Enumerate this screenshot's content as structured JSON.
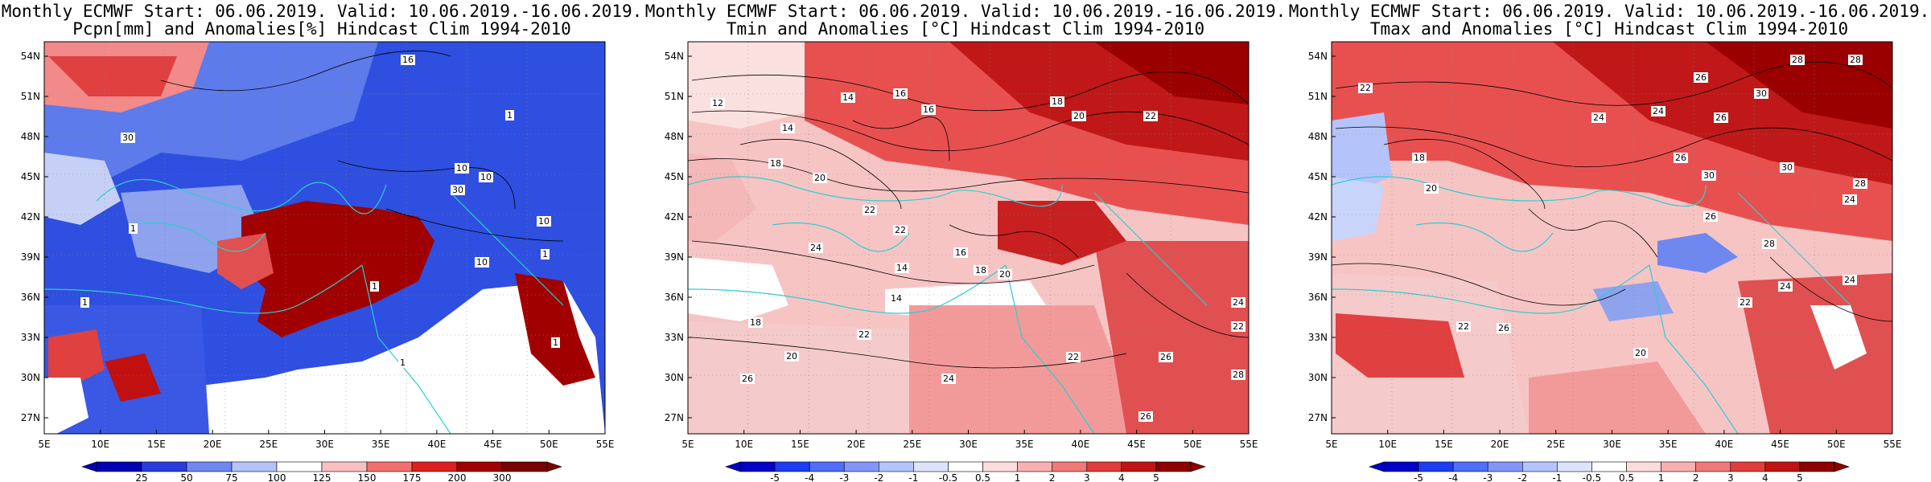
{
  "panels": [
    {
      "title_line1": "Monthly ECMWF Start: 06.06.2019. Valid: 10.06.2019.-16.06.2019.",
      "title_line2": "Pcpn[mm] and Anomalies[%] Hindcast Clim 1994-2010",
      "colorbar_labels": [
        "25",
        "50",
        "75",
        "100",
        "125",
        "150",
        "175",
        "200",
        "300"
      ],
      "colorbar_colors": [
        "#0000b4",
        "#2a3cdc",
        "#6e88f0",
        "#b4c4f8",
        "#ffffff",
        "#f8c0c0",
        "#f07070",
        "#dc2020",
        "#a00000",
        "#780000"
      ],
      "contour_labels": [
        "16",
        "1",
        "30",
        "10",
        "1",
        "10",
        "30",
        "10",
        "1",
        "1",
        "1",
        "1",
        "1",
        "10"
      ]
    },
    {
      "title_line1": "Monthly ECMWF Start: 06.06.2019. Valid: 10.06.2019.-16.06.2019.",
      "title_line2": "Tmin and Anomalies [°C] Hindcast Clim 1994-2010",
      "colorbar_labels": [
        "-5",
        "-4",
        "-3",
        "-2",
        "-1",
        "-0.5",
        "0.5",
        "1",
        "2",
        "3",
        "4",
        "5"
      ],
      "colorbar_colors": [
        "#0000c8",
        "#1e3cf0",
        "#506ef8",
        "#8296f8",
        "#b4c4fc",
        "#dce4fc",
        "#ffffff",
        "#fcdcdc",
        "#f8b0b0",
        "#f07878",
        "#e03c3c",
        "#c01414",
        "#8c0000"
      ],
      "contour_labels": [
        "16",
        "14",
        "16",
        "18",
        "20",
        "22",
        "12",
        "14",
        "18",
        "20",
        "22",
        "22",
        "24",
        "14",
        "16",
        "18",
        "20",
        "14",
        "22",
        "18",
        "26",
        "20",
        "24",
        "22",
        "26",
        "24",
        "22",
        "28",
        "26"
      ]
    },
    {
      "title_line1": "Monthly ECMWF Start: 06.06.2019. Valid: 10.06.2019.-16.06.2019.",
      "title_line2": "Tmax and Anomalies [°C] Hindcast Clim 1994-2010",
      "colorbar_labels": [
        "-5",
        "-4",
        "-3",
        "-2",
        "-1",
        "-0.5",
        "0.5",
        "1",
        "2",
        "3",
        "4",
        "5"
      ],
      "colorbar_colors": [
        "#0000c8",
        "#1e3cf0",
        "#506ef8",
        "#8296f8",
        "#b4c4fc",
        "#dce4fc",
        "#ffffff",
        "#fcdcdc",
        "#f8b0b0",
        "#f07878",
        "#e03c3c",
        "#c01414",
        "#8c0000"
      ],
      "contour_labels": [
        "28",
        "26",
        "24",
        "26",
        "30",
        "28",
        "22",
        "18",
        "20",
        "24",
        "26",
        "30",
        "28",
        "24",
        "22",
        "20",
        "26",
        "28",
        "24",
        "22",
        "26",
        "30",
        "24"
      ]
    }
  ],
  "lat_labels": [
    "54N",
    "51N",
    "48N",
    "45N",
    "42N",
    "39N",
    "36N",
    "33N",
    "30N",
    "27N"
  ],
  "lon_labels": [
    "5E",
    "10E",
    "15E",
    "20E",
    "25E",
    "30E",
    "35E",
    "40E",
    "45E",
    "50E",
    "55E"
  ]
}
